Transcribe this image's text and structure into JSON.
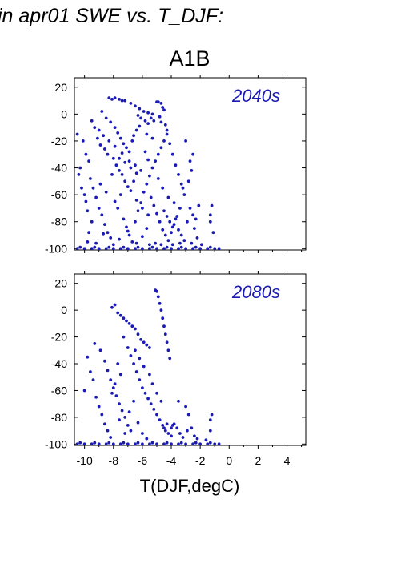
{
  "figure": {
    "title": "in apr01 SWE vs. T_DJF:",
    "scenario": "A1B",
    "xlabel": "T(DJF,degC)"
  },
  "chart_data": [
    {
      "type": "scatter",
      "annotation": "2040s",
      "xlim": [
        -10.7,
        5.3
      ],
      "ylim": [
        -101,
        27
      ],
      "xticks": [
        -10,
        -8,
        -6,
        -4,
        -2,
        0,
        2,
        4
      ],
      "yticks": [
        -100,
        -80,
        -60,
        -40,
        -20,
        0,
        20
      ],
      "ytick_labels": [
        "-100",
        "-80",
        "-60",
        "-40",
        "-20",
        "0",
        "20"
      ],
      "xtick_labels": [],
      "color": "#1a1ab4",
      "points": [
        [
          -8.3,
          12
        ],
        [
          -8.1,
          11
        ],
        [
          -7.9,
          12
        ],
        [
          -7.6,
          11
        ],
        [
          -7.4,
          10
        ],
        [
          -7.2,
          10
        ],
        [
          -6.8,
          8
        ],
        [
          -6.5,
          6
        ],
        [
          -6.2,
          4
        ],
        [
          -5.9,
          2
        ],
        [
          -5.6,
          1
        ],
        [
          -5.3,
          0
        ],
        [
          -5.0,
          9
        ],
        [
          -4.9,
          9
        ],
        [
          -4.7,
          8
        ],
        [
          -4.6,
          5
        ],
        [
          -4.5,
          3
        ],
        [
          -6.3,
          -1
        ],
        [
          -6.1,
          -3
        ],
        [
          -5.8,
          -5
        ],
        [
          -5.6,
          -7
        ],
        [
          -5.4,
          -3
        ],
        [
          -5.2,
          -5
        ],
        [
          -4.8,
          -2
        ],
        [
          -4.7,
          -6
        ],
        [
          -4.4,
          -8
        ],
        [
          -4.3,
          -12
        ],
        [
          -8.8,
          2
        ],
        [
          -8.5,
          -3
        ],
        [
          -8.2,
          -6
        ],
        [
          -7.9,
          -10
        ],
        [
          -7.7,
          -14
        ],
        [
          -7.5,
          -18
        ],
        [
          -7.3,
          -22
        ],
        [
          -7.1,
          -25
        ],
        [
          -6.9,
          -28
        ],
        [
          -6.7,
          -20
        ],
        [
          -6.6,
          -16
        ],
        [
          -6.4,
          -12
        ],
        [
          -6.2,
          -9
        ],
        [
          -9.5,
          -5
        ],
        [
          -9.3,
          -10
        ],
        [
          -9.1,
          -18
        ],
        [
          -8.9,
          -23
        ],
        [
          -8.6,
          -26
        ],
        [
          -8.4,
          -30
        ],
        [
          -8.0,
          -33
        ],
        [
          -7.8,
          -38
        ],
        [
          -7.6,
          -42
        ],
        [
          -7.4,
          -45
        ],
        [
          -7.2,
          -50
        ],
        [
          -7.0,
          -54
        ],
        [
          -6.8,
          -57
        ],
        [
          -6.6,
          -50
        ],
        [
          -6.4,
          -44
        ],
        [
          -10.1,
          -20
        ],
        [
          -10.3,
          -40
        ],
        [
          -10.4,
          -45
        ],
        [
          -10.5,
          -15
        ],
        [
          -9.9,
          -30
        ],
        [
          -9.7,
          -35
        ],
        [
          -9.6,
          -48
        ],
        [
          -9.4,
          -55
        ],
        [
          -9.2,
          -62
        ],
        [
          -9.0,
          -70
        ],
        [
          -8.8,
          -75
        ],
        [
          -8.6,
          -82
        ],
        [
          -8.4,
          -88
        ],
        [
          -8.2,
          -92
        ],
        [
          -7.9,
          -65
        ],
        [
          -7.7,
          -70
        ],
        [
          -7.5,
          -60
        ],
        [
          -7.3,
          -78
        ],
        [
          -7.1,
          -84
        ],
        [
          -6.9,
          -90
        ],
        [
          -6.7,
          -95
        ],
        [
          -6.5,
          -80
        ],
        [
          -6.3,
          -72
        ],
        [
          -6.1,
          -66
        ],
        [
          -5.9,
          -58
        ],
        [
          -5.7,
          -52
        ],
        [
          -5.5,
          -46
        ],
        [
          -5.3,
          -40
        ],
        [
          -5.1,
          -35
        ],
        [
          -4.9,
          -30
        ],
        [
          -4.7,
          -25
        ],
        [
          -4.5,
          -20
        ],
        [
          -4.3,
          -15
        ],
        [
          -4.1,
          -22
        ],
        [
          -3.9,
          -30
        ],
        [
          -3.7,
          -38
        ],
        [
          -3.5,
          -45
        ],
        [
          -3.3,
          -52
        ],
        [
          -3.1,
          -60
        ],
        [
          -5.8,
          -28
        ],
        [
          -5.6,
          -34
        ],
        [
          -5.4,
          -62
        ],
        [
          -5.2,
          -68
        ],
        [
          -5.0,
          -74
        ],
        [
          -4.8,
          -80
        ],
        [
          -4.6,
          -86
        ],
        [
          -4.4,
          -90
        ],
        [
          -4.2,
          -94
        ],
        [
          -4.0,
          -88
        ],
        [
          -3.8,
          -82
        ],
        [
          -3.6,
          -76
        ],
        [
          -3.4,
          -70
        ],
        [
          -4.5,
          -72
        ],
        [
          -4.3,
          -76
        ],
        [
          -4.1,
          -80
        ],
        [
          -3.9,
          -84
        ],
        [
          -3.7,
          -78
        ],
        [
          -3.5,
          -86
        ],
        [
          -3.3,
          -90
        ],
        [
          -3.1,
          -94
        ],
        [
          -2.9,
          -80
        ],
        [
          -2.7,
          -70
        ],
        [
          -2.5,
          -75
        ],
        [
          -2.3,
          -78
        ],
        [
          -2.1,
          -68
        ],
        [
          -3.0,
          -20
        ],
        [
          -2.7,
          -35
        ],
        [
          -2.5,
          -30
        ],
        [
          -2.6,
          -42
        ],
        [
          -2.8,
          -50
        ],
        [
          -3.2,
          -55
        ],
        [
          -2.4,
          -85
        ],
        [
          -2.2,
          -92
        ],
        [
          -1.3,
          -75
        ],
        [
          -1.2,
          -68
        ],
        [
          -1.3,
          -80
        ],
        [
          -1.1,
          -88
        ],
        [
          -9.8,
          -95
        ],
        [
          -9.2,
          -96
        ],
        [
          -8.7,
          -89
        ],
        [
          -8.0,
          -97
        ],
        [
          -7.6,
          -93
        ],
        [
          -7.0,
          -87
        ],
        [
          -6.4,
          -96
        ],
        [
          -6.0,
          -91
        ],
        [
          -5.7,
          -85
        ],
        [
          -5.5,
          -97
        ],
        [
          -5.1,
          -96
        ],
        [
          -4.7,
          -97
        ],
        [
          -3.9,
          -97
        ],
        [
          -3.4,
          -96
        ],
        [
          -2.6,
          -96
        ],
        [
          -1.9,
          -97
        ],
        [
          -9.0,
          -12
        ],
        [
          -8.7,
          -16
        ],
        [
          -8.3,
          -20
        ],
        [
          -7.9,
          -24
        ],
        [
          -7.4,
          -29
        ],
        [
          -6.9,
          -35
        ],
        [
          -6.5,
          -38
        ],
        [
          -6.1,
          -42
        ],
        [
          -5.7,
          -15
        ],
        [
          -5.3,
          -18
        ],
        [
          -4.9,
          -48
        ],
        [
          -4.6,
          -55
        ],
        [
          -4.2,
          -62
        ],
        [
          -3.8,
          -66
        ],
        [
          -10.0,
          -60
        ],
        [
          -9.8,
          -72
        ],
        [
          -9.5,
          -80
        ],
        [
          -9.7,
          -88
        ],
        [
          -10.2,
          -55
        ],
        [
          -9.9,
          -65
        ],
        [
          -8.9,
          -52
        ],
        [
          -8.5,
          -58
        ],
        [
          -8.1,
          -45
        ],
        [
          -7.6,
          -33
        ],
        [
          -7.2,
          -36
        ],
        [
          -6.8,
          -40
        ],
        [
          -6.4,
          -64
        ],
        [
          -6.0,
          -70
        ],
        [
          -5.6,
          -75
        ],
        [
          -10.5,
          -100
        ],
        [
          -10.0,
          -100
        ],
        [
          -9.5,
          -100
        ],
        [
          -9.0,
          -100
        ],
        [
          -8.5,
          -100
        ],
        [
          -8.0,
          -100
        ],
        [
          -7.5,
          -100
        ],
        [
          -7.0,
          -100
        ],
        [
          -6.5,
          -100
        ],
        [
          -6.0,
          -100
        ],
        [
          -5.5,
          -100
        ],
        [
          -5.0,
          -100
        ],
        [
          -4.5,
          -100
        ],
        [
          -4.0,
          -100
        ],
        [
          -3.5,
          -100
        ],
        [
          -3.0,
          -100
        ],
        [
          -2.5,
          -100
        ],
        [
          -2.0,
          -100
        ],
        [
          -1.5,
          -100
        ],
        [
          -1.0,
          -100
        ],
        [
          -0.7,
          -100
        ],
        [
          -10.3,
          -99
        ],
        [
          -9.3,
          -99
        ],
        [
          -8.3,
          -99
        ],
        [
          -7.3,
          -99
        ],
        [
          -6.3,
          -99
        ],
        [
          -5.3,
          -99
        ],
        [
          -4.3,
          -99
        ],
        [
          -3.3,
          -99
        ],
        [
          -2.3,
          -99
        ],
        [
          -1.3,
          -99
        ]
      ]
    },
    {
      "type": "scatter",
      "annotation": "2080s",
      "xlim": [
        -10.7,
        5.3
      ],
      "ylim": [
        -101,
        27
      ],
      "xticks": [
        -10,
        -8,
        -6,
        -4,
        -2,
        0,
        2,
        4
      ],
      "yticks": [
        -100,
        -80,
        -60,
        -40,
        -20,
        0,
        20
      ],
      "ytick_labels": [
        "-100",
        "-80",
        "-60",
        "-40",
        "-20",
        "0",
        "20"
      ],
      "xtick_labels": [
        "-10",
        "-8",
        "-6",
        "-4",
        "-2",
        "0",
        "2",
        "4"
      ],
      "color": "#1a1ab4",
      "points": [
        [
          -7.9,
          4
        ],
        [
          -8.1,
          2
        ],
        [
          -7.7,
          -2
        ],
        [
          -7.5,
          -4
        ],
        [
          -7.3,
          -6
        ],
        [
          -7.1,
          -8
        ],
        [
          -6.9,
          -10
        ],
        [
          -6.7,
          -12
        ],
        [
          -6.5,
          -14
        ],
        [
          -6.3,
          -18
        ],
        [
          -6.1,
          -22
        ],
        [
          -5.9,
          -24
        ],
        [
          -5.7,
          -26
        ],
        [
          -5.5,
          -28
        ],
        [
          -5.1,
          15
        ],
        [
          -5.0,
          14
        ],
        [
          -4.9,
          10
        ],
        [
          -4.8,
          5
        ],
        [
          -4.7,
          0
        ],
        [
          -4.6,
          -6
        ],
        [
          -4.5,
          -12
        ],
        [
          -4.4,
          -18
        ],
        [
          -4.3,
          -24
        ],
        [
          -4.2,
          -30
        ],
        [
          -4.1,
          -36
        ],
        [
          -9.3,
          -25
        ],
        [
          -8.9,
          -30
        ],
        [
          -8.6,
          -38
        ],
        [
          -8.4,
          -45
        ],
        [
          -8.2,
          -52
        ],
        [
          -8.0,
          -58
        ],
        [
          -7.8,
          -64
        ],
        [
          -7.6,
          -70
        ],
        [
          -7.4,
          -75
        ],
        [
          -7.2,
          -80
        ],
        [
          -7.0,
          -86
        ],
        [
          -6.8,
          -90
        ],
        [
          -9.8,
          -35
        ],
        [
          -9.6,
          -46
        ],
        [
          -10.0,
          -60
        ],
        [
          -9.4,
          -52
        ],
        [
          -9.2,
          -65
        ],
        [
          -9.0,
          -72
        ],
        [
          -8.8,
          -78
        ],
        [
          -8.6,
          -85
        ],
        [
          -8.4,
          -90
        ],
        [
          -8.2,
          -95
        ],
        [
          -6.6,
          -40
        ],
        [
          -6.4,
          -46
        ],
        [
          -6.2,
          -52
        ],
        [
          -6.0,
          -58
        ],
        [
          -5.8,
          -62
        ],
        [
          -5.6,
          -66
        ],
        [
          -5.4,
          -70
        ],
        [
          -5.2,
          -74
        ],
        [
          -5.0,
          -78
        ],
        [
          -4.8,
          -82
        ],
        [
          -4.6,
          -86
        ],
        [
          -4.4,
          -90
        ],
        [
          -4.2,
          -92
        ],
        [
          -4.0,
          -94
        ],
        [
          -7.3,
          -20
        ],
        [
          -7.0,
          -28
        ],
        [
          -6.8,
          -34
        ],
        [
          -6.5,
          -30
        ],
        [
          -6.2,
          -36
        ],
        [
          -5.9,
          -42
        ],
        [
          -5.5,
          -48
        ],
        [
          -5.3,
          -55
        ],
        [
          -5.0,
          -62
        ],
        [
          -4.7,
          -68
        ],
        [
          -3.8,
          -85
        ],
        [
          -3.6,
          -88
        ],
        [
          -3.4,
          -92
        ],
        [
          -3.2,
          -95
        ],
        [
          -2.9,
          -90
        ],
        [
          -2.6,
          -88
        ],
        [
          -2.4,
          -94
        ],
        [
          -2.2,
          -96
        ],
        [
          -1.3,
          -82
        ],
        [
          -1.2,
          -78
        ],
        [
          -1.3,
          -90
        ],
        [
          -1.6,
          -97
        ],
        [
          -3.5,
          -68
        ],
        [
          -3.0,
          -72
        ],
        [
          -2.8,
          -78
        ],
        [
          -4.3,
          -85
        ],
        [
          -4.0,
          -88
        ],
        [
          -3.9,
          -86
        ],
        [
          -4.5,
          -88
        ],
        [
          -7.7,
          -40
        ],
        [
          -7.5,
          -48
        ],
        [
          -7.9,
          -55
        ],
        [
          -8.1,
          -62
        ],
        [
          -7.6,
          -82
        ],
        [
          -7.2,
          -92
        ],
        [
          -6.9,
          -76
        ],
        [
          -6.6,
          -68
        ],
        [
          -6.3,
          -84
        ],
        [
          -6.0,
          -92
        ],
        [
          -5.7,
          -96
        ],
        [
          -10.5,
          -100
        ],
        [
          -10.0,
          -100
        ],
        [
          -9.5,
          -100
        ],
        [
          -9.0,
          -100
        ],
        [
          -8.5,
          -100
        ],
        [
          -8.0,
          -100
        ],
        [
          -7.5,
          -100
        ],
        [
          -7.0,
          -100
        ],
        [
          -6.5,
          -100
        ],
        [
          -6.0,
          -100
        ],
        [
          -5.5,
          -100
        ],
        [
          -5.0,
          -100
        ],
        [
          -4.5,
          -100
        ],
        [
          -4.0,
          -100
        ],
        [
          -3.5,
          -100
        ],
        [
          -3.0,
          -100
        ],
        [
          -2.5,
          -100
        ],
        [
          -2.0,
          -100
        ],
        [
          -1.5,
          -100
        ],
        [
          -1.0,
          -100
        ],
        [
          -0.7,
          -100
        ],
        [
          -10.3,
          -99
        ],
        [
          -9.3,
          -99
        ],
        [
          -8.3,
          -99
        ],
        [
          -7.3,
          -99
        ],
        [
          -6.3,
          -99
        ],
        [
          -5.3,
          -99
        ],
        [
          -4.3,
          -99
        ],
        [
          -3.3,
          -99
        ],
        [
          -2.3,
          -99
        ],
        [
          -1.3,
          -99
        ]
      ]
    }
  ]
}
